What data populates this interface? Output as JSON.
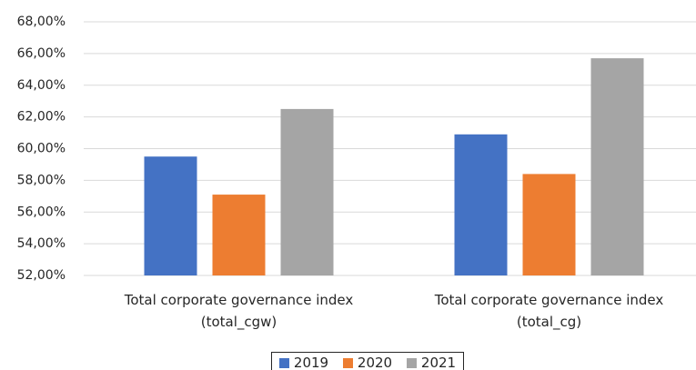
{
  "chart_data": {
    "type": "bar",
    "categories": [
      "Total corporate governance index\n(total_cgw)",
      "Total corporate governance index\n(total_cg)"
    ],
    "series": [
      {
        "name": "2019",
        "color": "#4472c4",
        "values": [
          59.5,
          60.9
        ]
      },
      {
        "name": "2020",
        "color": "#ed7d31",
        "values": [
          57.1,
          58.4
        ]
      },
      {
        "name": "2021",
        "color": "#a5a5a5",
        "values": [
          62.5,
          65.7
        ]
      }
    ],
    "ylim": [
      52,
      68
    ],
    "yticks": [
      {
        "value": 52,
        "label": "52,00%"
      },
      {
        "value": 54,
        "label": "54,00%"
      },
      {
        "value": 56,
        "label": "56,00%"
      },
      {
        "value": 58,
        "label": "58,00%"
      },
      {
        "value": 60,
        "label": "60,00%"
      },
      {
        "value": 62,
        "label": "62,00%"
      },
      {
        "value": 64,
        "label": "64,00%"
      },
      {
        "value": 66,
        "label": "66,00%"
      },
      {
        "value": 68,
        "label": "68,00%"
      }
    ],
    "grid": true,
    "legend": "bottom"
  }
}
